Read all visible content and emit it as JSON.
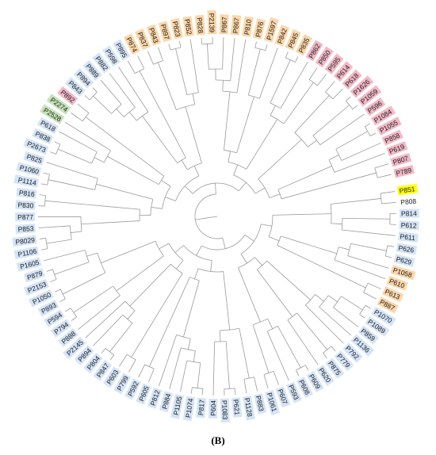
{
  "panel_label": "(B)",
  "tree": {
    "type": "circular-dendrogram",
    "colors": {
      "orange": "#fbd6a8",
      "pink": "#f2b8c6",
      "blue": "#d4e4f7",
      "green": "#c5e3b8",
      "yellow": "#ffff00",
      "branch": "#9a9a9a",
      "label_text": "#1a1a1a"
    },
    "leaves": [
      {
        "name": "P851",
        "color": "yellow"
      },
      {
        "name": "P808",
        "color": "none"
      },
      {
        "name": "P814",
        "color": "blue"
      },
      {
        "name": "P612",
        "color": "blue"
      },
      {
        "name": "P611",
        "color": "blue"
      },
      {
        "name": "P626",
        "color": "blue"
      },
      {
        "name": "P629",
        "color": "blue"
      },
      {
        "name": "P1058",
        "color": "orange"
      },
      {
        "name": "P610",
        "color": "orange"
      },
      {
        "name": "P613",
        "color": "orange"
      },
      {
        "name": "P887",
        "color": "orange"
      },
      {
        "name": "P1070",
        "color": "blue"
      },
      {
        "name": "P1089",
        "color": "blue"
      },
      {
        "name": "P859",
        "color": "blue"
      },
      {
        "name": "P1136",
        "color": "blue"
      },
      {
        "name": "P792",
        "color": "blue"
      },
      {
        "name": "P779",
        "color": "blue"
      },
      {
        "name": "P875",
        "color": "blue"
      },
      {
        "name": "P620",
        "color": "blue"
      },
      {
        "name": "P609",
        "color": "blue"
      },
      {
        "name": "P608",
        "color": "blue"
      },
      {
        "name": "P593",
        "color": "blue"
      },
      {
        "name": "P607",
        "color": "blue"
      },
      {
        "name": "P1061",
        "color": "blue"
      },
      {
        "name": "P883",
        "color": "blue"
      },
      {
        "name": "P1128",
        "color": "blue"
      },
      {
        "name": "P621",
        "color": "blue"
      },
      {
        "name": "P1083",
        "color": "blue"
      },
      {
        "name": "P604",
        "color": "blue"
      },
      {
        "name": "P817",
        "color": "blue"
      },
      {
        "name": "P1074",
        "color": "blue"
      },
      {
        "name": "P1105",
        "color": "blue"
      },
      {
        "name": "P884",
        "color": "blue"
      },
      {
        "name": "P812",
        "color": "blue"
      },
      {
        "name": "P605",
        "color": "blue"
      },
      {
        "name": "P592",
        "color": "blue"
      },
      {
        "name": "P799",
        "color": "blue"
      },
      {
        "name": "P603",
        "color": "blue"
      },
      {
        "name": "P847",
        "color": "blue"
      },
      {
        "name": "P804",
        "color": "blue"
      },
      {
        "name": "P894",
        "color": "blue"
      },
      {
        "name": "P2145",
        "color": "blue"
      },
      {
        "name": "P888",
        "color": "blue"
      },
      {
        "name": "P794",
        "color": "blue"
      },
      {
        "name": "P594",
        "color": "blue"
      },
      {
        "name": "P893",
        "color": "blue"
      },
      {
        "name": "P1050",
        "color": "blue"
      },
      {
        "name": "P2153",
        "color": "blue"
      },
      {
        "name": "P879",
        "color": "blue"
      },
      {
        "name": "P1605",
        "color": "blue"
      },
      {
        "name": "P1106",
        "color": "blue"
      },
      {
        "name": "P8029",
        "color": "blue"
      },
      {
        "name": "P853",
        "color": "blue"
      },
      {
        "name": "P877",
        "color": "blue"
      },
      {
        "name": "P830",
        "color": "blue"
      },
      {
        "name": "P816",
        "color": "blue"
      },
      {
        "name": "P1114",
        "color": "blue"
      },
      {
        "name": "P1060",
        "color": "blue"
      },
      {
        "name": "P825",
        "color": "blue"
      },
      {
        "name": "P2673",
        "color": "blue"
      },
      {
        "name": "P838",
        "color": "blue"
      },
      {
        "name": "P618",
        "color": "blue"
      },
      {
        "name": "P2528",
        "color": "green"
      },
      {
        "name": "P2274",
        "color": "green"
      },
      {
        "name": "P892",
        "color": "pink"
      },
      {
        "name": "P843",
        "color": "blue"
      },
      {
        "name": "P894",
        "color": "blue"
      },
      {
        "name": "P889",
        "color": "blue"
      },
      {
        "name": "P882",
        "color": "blue"
      },
      {
        "name": "P598",
        "color": "blue"
      },
      {
        "name": "P895",
        "color": "blue"
      },
      {
        "name": "P874",
        "color": "orange"
      },
      {
        "name": "P837",
        "color": "orange"
      },
      {
        "name": "P843",
        "color": "orange"
      },
      {
        "name": "P897",
        "color": "orange"
      },
      {
        "name": "P823",
        "color": "orange"
      },
      {
        "name": "P852",
        "color": "orange"
      },
      {
        "name": "P828",
        "color": "orange"
      },
      {
        "name": "P2139",
        "color": "orange"
      },
      {
        "name": "P867",
        "color": "orange"
      },
      {
        "name": "P867",
        "color": "orange"
      },
      {
        "name": "P810",
        "color": "orange"
      },
      {
        "name": "P876",
        "color": "orange"
      },
      {
        "name": "P1597",
        "color": "orange"
      },
      {
        "name": "P842",
        "color": "orange"
      },
      {
        "name": "P845",
        "color": "orange"
      },
      {
        "name": "P835",
        "color": "orange"
      },
      {
        "name": "P862",
        "color": "pink"
      },
      {
        "name": "P850",
        "color": "pink"
      },
      {
        "name": "P595",
        "color": "pink"
      },
      {
        "name": "P614",
        "color": "pink"
      },
      {
        "name": "P618",
        "color": "pink"
      },
      {
        "name": "P1626",
        "color": "pink"
      },
      {
        "name": "P1059",
        "color": "pink"
      },
      {
        "name": "P596",
        "color": "pink"
      },
      {
        "name": "P1084",
        "color": "pink"
      },
      {
        "name": "P1055",
        "color": "pink"
      },
      {
        "name": "P858",
        "color": "pink"
      },
      {
        "name": "P619",
        "color": "pink"
      },
      {
        "name": "P807",
        "color": "pink"
      },
      {
        "name": "P789",
        "color": "pink"
      }
    ]
  }
}
